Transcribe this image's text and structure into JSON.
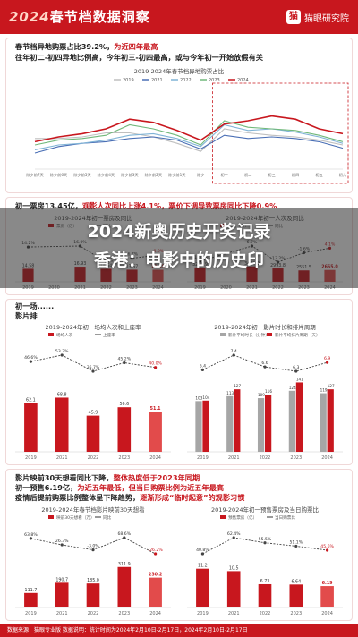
{
  "header": {
    "year": "2024",
    "title": "春节档数据洞察",
    "brand": "猫眼研究院",
    "logo": "猫"
  },
  "section1": {
    "heading_line1_a": "春节档异地购票占比39.2%，",
    "heading_line1_b": "为近四年最高",
    "heading_line2": "往年初二-初四异地比例高，今年初三-初四最高，或与今年初一开始放假有关"
  },
  "section2": {
    "heading_a": "初一票房13.45亿，",
    "heading_b": "观影人次同比上涨4.1%，票价下调导致票房同比下降0.9%"
  },
  "section3": {
    "heading_a": "初一场",
    "heading_b": "......",
    "heading_line2": "影片排"
  },
  "section4": {
    "heading_line1_a": "影片映前30天想看同比下降，",
    "heading_line1_b": "整体热度低于2023年同期",
    "heading_line2_a": "初一预售6.19亿，",
    "heading_line2_b": "为近五年最低，但当日购票比例为近五年最高",
    "heading_line3_a": "疫情后提前购票比例整体呈下降趋势，",
    "heading_line3_b": "逐渐形成“临时起意”的观影习惯"
  },
  "overlay": {
    "line1": "2024新奥历史开奖记录",
    "line2": "香港：电影中的历史印"
  },
  "footer": "数据来源：猫眼专业版  数据说明：统计时间为2024年2月10日-2月17日，2024年2月10日-2月17日"
}
